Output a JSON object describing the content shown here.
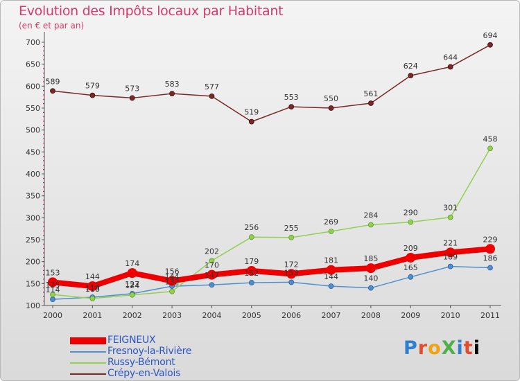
{
  "header": {
    "title": "Evolution des Impôts locaux par Habitant",
    "subtitle": "(en € et par an)"
  },
  "logo": {
    "text": "ProXiti"
  },
  "colors": {
    "background_top": "#f4f4f4",
    "background_bottom": "#dadada",
    "title": "#d83a6a",
    "axis": "#555555",
    "tick_marks": "#c8005a",
    "legend_text": "#2b54c7"
  },
  "chart_data": {
    "type": "line",
    "title": "Evolution des Impôts locaux par Habitant",
    "subtitle": "(en € et par an)",
    "xlabel": "",
    "ylabel": "",
    "x": [
      "2000",
      "2001",
      "2002",
      "2003",
      "2004",
      "2005",
      "2006",
      "2007",
      "2008",
      "2009",
      "2010",
      "2011"
    ],
    "ylim": [
      100,
      700
    ],
    "yticks": [
      100,
      150,
      200,
      250,
      300,
      350,
      400,
      450,
      500,
      550,
      600,
      650,
      700
    ],
    "grid": false,
    "legend_position": "bottom-left",
    "series": [
      {
        "name": "FEIGNEUX",
        "color": "#ee0000",
        "values": [
          153,
          144,
          174,
          156,
          170,
          179,
          172,
          181,
          185,
          209,
          221,
          229
        ],
        "labels": [
          "153",
          "144",
          "174",
          "156",
          "170",
          "179",
          "172",
          "181",
          "185",
          "209",
          "221",
          "229"
        ]
      },
      {
        "name": "Fresnoy-la-Rivière",
        "color": "#4f8fcf",
        "values": [
          114,
          119,
          127,
          144,
          147,
          152,
          153,
          144,
          140,
          165,
          189,
          186
        ],
        "labels": [
          "114",
          "119",
          "127",
          "144",
          "147",
          "152",
          "153",
          "144",
          "140",
          "165",
          "189",
          "186"
        ]
      },
      {
        "name": "Russy-Bémont",
        "color": "#92d050",
        "values": [
          125,
          116,
          124,
          132,
          202,
          256,
          255,
          269,
          284,
          290,
          301,
          458
        ],
        "labels": [
          "125",
          "116",
          "124",
          "132",
          "202",
          "256",
          "255",
          "269",
          "284",
          "290",
          "301",
          "458"
        ]
      },
      {
        "name": "Crépy-en-Valois",
        "color": "#7a2828",
        "values": [
          589,
          579,
          573,
          583,
          577,
          519,
          553,
          550,
          561,
          624,
          644,
          694
        ],
        "labels": [
          "589",
          "579",
          "573",
          "583",
          "577",
          "519",
          "553",
          "550",
          "561",
          "624",
          "644",
          "694"
        ]
      }
    ]
  }
}
